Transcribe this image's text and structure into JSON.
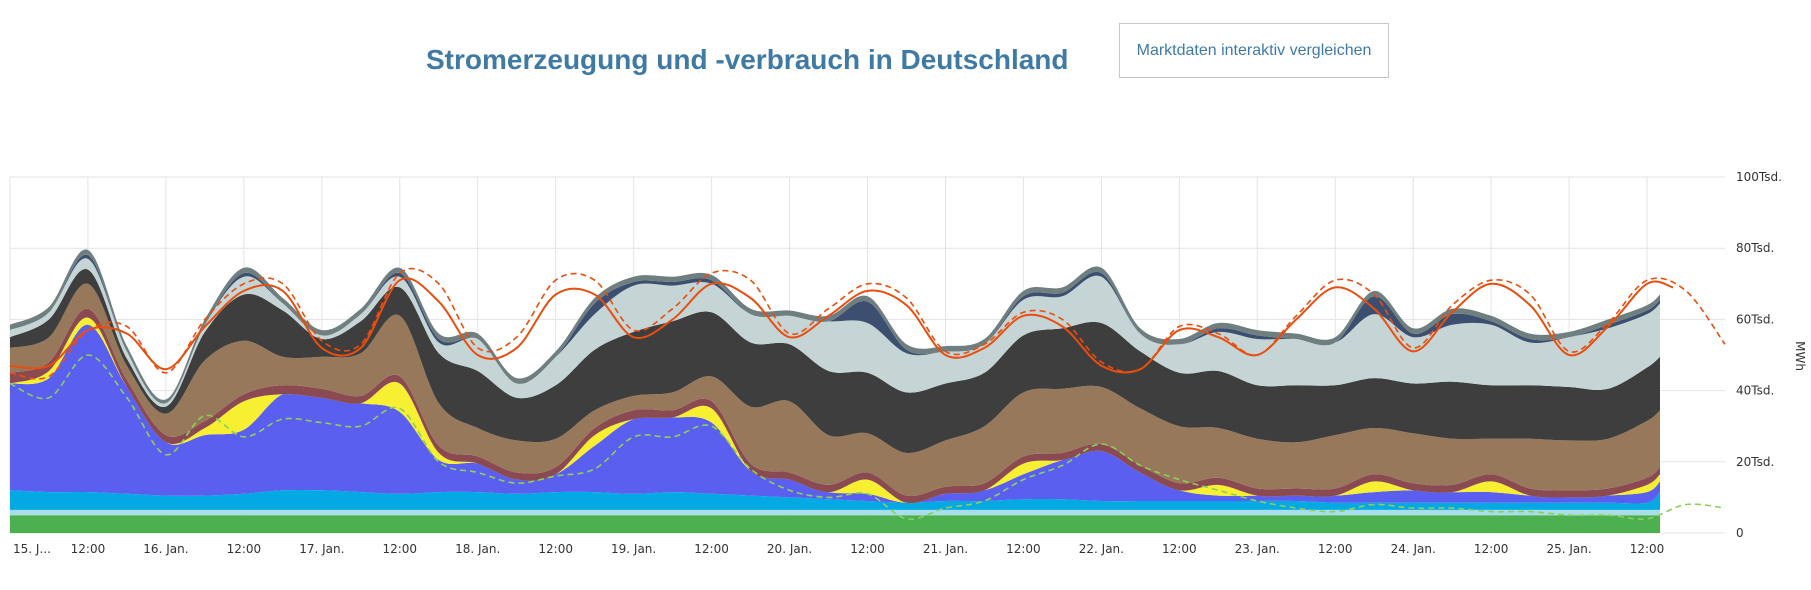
{
  "header": {
    "title": "Stromerzeugung und -verbrauch in Deutschland",
    "compare_button": "Marktdaten interaktiv vergleichen"
  },
  "chart_data": {
    "type": "area",
    "stacked": true,
    "x_unit": "hours since 15. Jan. 00:00",
    "x_range": [
      0,
      264
    ],
    "x_ticks": [
      {
        "x": 0,
        "label": "15. J..."
      },
      {
        "x": 12,
        "label": "12:00"
      },
      {
        "x": 24,
        "label": "16. Jan."
      },
      {
        "x": 36,
        "label": "12:00"
      },
      {
        "x": 48,
        "label": "17. Jan."
      },
      {
        "x": 60,
        "label": "12:00"
      },
      {
        "x": 72,
        "label": "18. Jan."
      },
      {
        "x": 84,
        "label": "12:00"
      },
      {
        "x": 96,
        "label": "19. Jan."
      },
      {
        "x": 108,
        "label": "12:00"
      },
      {
        "x": 120,
        "label": "20. Jan."
      },
      {
        "x": 132,
        "label": "12:00"
      },
      {
        "x": 144,
        "label": "21. Jan."
      },
      {
        "x": 156,
        "label": "12:00"
      },
      {
        "x": 168,
        "label": "22. Jan."
      },
      {
        "x": 180,
        "label": "12:00"
      },
      {
        "x": 192,
        "label": "23. Jan."
      },
      {
        "x": 204,
        "label": "12:00"
      },
      {
        "x": 216,
        "label": "24. Jan."
      },
      {
        "x": 228,
        "label": "12:00"
      },
      {
        "x": 240,
        "label": "25. Jan."
      },
      {
        "x": 252,
        "label": "12:00"
      }
    ],
    "y_axis": {
      "unit": "MWh",
      "range": [
        0,
        100000
      ],
      "ticks": [
        {
          "v": 0,
          "label": "0"
        },
        {
          "v": 20000,
          "label": "20Tsd."
        },
        {
          "v": 40000,
          "label": "40Tsd."
        },
        {
          "v": 60000,
          "label": "60Tsd."
        },
        {
          "v": 80000,
          "label": "80Tsd."
        },
        {
          "v": 100000,
          "label": "100Tsd."
        }
      ]
    },
    "grid": true,
    "legend": "none",
    "x": [
      0,
      6,
      12,
      18,
      24,
      30,
      36,
      42,
      48,
      54,
      60,
      66,
      72,
      78,
      84,
      90,
      96,
      102,
      108,
      114,
      120,
      126,
      132,
      138,
      144,
      150,
      156,
      162,
      168,
      174,
      180,
      186,
      192,
      198,
      204,
      210,
      216,
      222,
      228,
      234,
      240,
      246,
      252,
      254
    ],
    "series": [
      {
        "color": "#4caf50",
        "values": [
          5000,
          5000,
          5000,
          5000,
          5000,
          5000,
          5000,
          5000,
          5000,
          5000,
          5000,
          5000,
          5000,
          5000,
          5000,
          5000,
          5000,
          5000,
          5000,
          5000,
          5000,
          5000,
          5000,
          5000,
          5000,
          5000,
          5000,
          5000,
          5000,
          5000,
          5000,
          5000,
          5000,
          5000,
          5000,
          5000,
          5000,
          5000,
          5000,
          5000,
          5000,
          5000,
          5000,
          5000
        ]
      },
      {
        "color": "#a9dde8",
        "values": [
          1500,
          1500,
          1500,
          1500,
          1500,
          1500,
          1500,
          1500,
          1500,
          1500,
          1500,
          1500,
          1500,
          1500,
          1500,
          1500,
          1500,
          1500,
          1500,
          1500,
          1500,
          1500,
          1500,
          1500,
          1500,
          1500,
          1500,
          1500,
          1500,
          1500,
          1500,
          1500,
          1500,
          1500,
          1500,
          1500,
          1500,
          1500,
          1500,
          1500,
          1500,
          1500,
          1500,
          1500
        ]
      },
      {
        "color": "#03a9e3",
        "values": [
          5500,
          5000,
          5000,
          4500,
          4000,
          4000,
          4500,
          5500,
          5500,
          5000,
          4500,
          5000,
          5000,
          4500,
          5000,
          5000,
          4500,
          5000,
          4500,
          4000,
          3500,
          3000,
          2500,
          2000,
          2500,
          2500,
          3000,
          3000,
          2500,
          2500,
          2500,
          2500,
          2500,
          2500,
          2000,
          2000,
          2000,
          2000,
          2000,
          2000,
          2000,
          2000,
          2000,
          5000
        ]
      },
      {
        "color": "#5b5ff0",
        "values": [
          30000,
          32000,
          47000,
          30000,
          15000,
          17000,
          18000,
          27000,
          26000,
          25000,
          23000,
          9000,
          8000,
          4000,
          5000,
          13000,
          21000,
          21000,
          20000,
          7000,
          5000,
          2000,
          2000,
          0,
          2000,
          3000,
          7000,
          11000,
          14000,
          8000,
          3000,
          1500,
          1500,
          1500,
          2000,
          3000,
          3500,
          3000,
          3000,
          2000,
          1500,
          2000,
          3000,
          3000
        ]
      },
      {
        "color": "#f7ef32",
        "values": [
          0,
          2000,
          2000,
          0,
          0,
          2000,
          8000,
          0,
          0,
          0,
          8000,
          2000,
          0,
          0,
          0,
          3000,
          0,
          0,
          4000,
          0,
          0,
          0,
          4000,
          0,
          0,
          0,
          3000,
          0,
          0,
          0,
          0,
          3000,
          0,
          0,
          0,
          3000,
          0,
          0,
          3000,
          0,
          0,
          0,
          2000,
          2000
        ]
      },
      {
        "color": "#8b4a51",
        "values": [
          3000,
          2500,
          2500,
          2000,
          2000,
          2000,
          2000,
          2500,
          2500,
          2000,
          2000,
          2000,
          2000,
          2000,
          2000,
          2000,
          2500,
          2000,
          2000,
          2000,
          2000,
          2000,
          2000,
          2000,
          2000,
          2000,
          2000,
          2000,
          2000,
          2000,
          2000,
          2000,
          2000,
          2000,
          2000,
          2000,
          2000,
          2000,
          2000,
          2000,
          2000,
          2000,
          2000,
          2000
        ]
      },
      {
        "color": "#97785b",
        "values": [
          7000,
          7000,
          7000,
          4000,
          6000,
          17000,
          15000,
          8000,
          9000,
          12000,
          17000,
          12000,
          8000,
          9000,
          8000,
          5000,
          4000,
          5000,
          7000,
          16000,
          20000,
          14000,
          11000,
          12000,
          13000,
          16000,
          18000,
          18000,
          16000,
          16000,
          16000,
          14000,
          14000,
          13000,
          15000,
          13000,
          14000,
          13000,
          10000,
          14000,
          14000,
          14000,
          16000,
          16000
        ]
      },
      {
        "color": "#3e3e3e",
        "values": [
          3000,
          5000,
          4000,
          2000,
          2000,
          8000,
          13000,
          13000,
          5000,
          9000,
          8000,
          14000,
          16000,
          12000,
          15000,
          17000,
          18000,
          20000,
          18000,
          18000,
          16000,
          18000,
          17000,
          17000,
          16000,
          15000,
          16000,
          17000,
          18000,
          16000,
          15000,
          16000,
          15000,
          16000,
          14000,
          14000,
          14000,
          16000,
          15000,
          15000,
          15000,
          14000,
          15000,
          15000
        ]
      },
      {
        "color": "#c5d5d5",
        "values": [
          2000,
          2000,
          3000,
          2000,
          1000,
          2000,
          5000,
          2000,
          1000,
          2000,
          3000,
          3000,
          9000,
          4000,
          8000,
          10000,
          13000,
          10000,
          8000,
          8000,
          8000,
          14000,
          14000,
          11000,
          9000,
          8000,
          10000,
          9000,
          13000,
          5000,
          8000,
          11000,
          13000,
          13000,
          12000,
          18000,
          13000,
          16000,
          17000,
          12000,
          14000,
          17000,
          15000,
          15000
        ]
      },
      {
        "color": "#3d4f70",
        "values": [
          0,
          0,
          1000,
          0,
          0,
          0,
          1000,
          0,
          0,
          0,
          1000,
          1000,
          0,
          0,
          0,
          3000,
          1000,
          1000,
          1000,
          0,
          0,
          0,
          6000,
          1000,
          0,
          0,
          1000,
          1000,
          1000,
          0,
          0,
          1000,
          1000,
          0,
          0,
          5000,
          1000,
          3000,
          1000,
          1000,
          0,
          1000,
          1000,
          1000
        ]
      },
      {
        "color": "#6f7f7f",
        "values": [
          1500,
          1500,
          1500,
          1500,
          1000,
          1500,
          1500,
          1500,
          1500,
          1500,
          1500,
          1500,
          1500,
          1500,
          1500,
          1500,
          1500,
          1500,
          1500,
          1500,
          1500,
          1500,
          1500,
          1500,
          1500,
          1500,
          1500,
          1500,
          1500,
          1500,
          1500,
          1500,
          1500,
          1500,
          1500,
          1500,
          1500,
          1500,
          1500,
          1500,
          1500,
          1500,
          1500,
          1500
        ]
      }
    ],
    "lines": [
      {
        "color": "#e84e0f",
        "style": "solid",
        "x": [
          0,
          6,
          12,
          18,
          24,
          30,
          36,
          42,
          48,
          54,
          60,
          66,
          72,
          78,
          84,
          90,
          96,
          102,
          108,
          114,
          120,
          126,
          132,
          138,
          144,
          150,
          156,
          162,
          168,
          174,
          180,
          186,
          192,
          198,
          204,
          210,
          216,
          222,
          228,
          234,
          240,
          246,
          252,
          256
        ],
        "values": [
          47000,
          47000,
          57000,
          56000,
          46000,
          58000,
          68000,
          68000,
          52000,
          52000,
          71000,
          65000,
          50000,
          52000,
          67000,
          67000,
          55000,
          60000,
          70000,
          66000,
          55000,
          61000,
          68000,
          64000,
          50000,
          52000,
          61000,
          58000,
          47000,
          46000,
          57000,
          55000,
          50000,
          60000,
          69000,
          63000,
          51000,
          62000,
          70000,
          64000,
          50000,
          58000,
          70000,
          69000
        ]
      },
      {
        "color": "#e84e0f",
        "style": "dashed",
        "x": [
          0,
          6,
          12,
          18,
          24,
          30,
          36,
          42,
          48,
          54,
          60,
          66,
          72,
          78,
          84,
          90,
          96,
          102,
          108,
          114,
          120,
          126,
          132,
          138,
          144,
          150,
          156,
          162,
          168,
          174,
          180,
          186,
          192,
          198,
          204,
          210,
          216,
          222,
          228,
          234,
          240,
          246,
          252,
          258,
          264
        ],
        "values": [
          45000,
          44000,
          57000,
          58000,
          45000,
          60000,
          70000,
          70000,
          54000,
          53000,
          73000,
          70000,
          52000,
          55000,
          71000,
          71000,
          57000,
          63000,
          73000,
          71000,
          56000,
          63000,
          70000,
          66000,
          51000,
          53000,
          62000,
          60000,
          48000,
          46000,
          58000,
          56000,
          50000,
          61000,
          71000,
          67000,
          52000,
          64000,
          71000,
          67000,
          51000,
          59000,
          71000,
          68000,
          53000
        ]
      },
      {
        "color": "#8ccf5a",
        "style": "dashed",
        "x": [
          0,
          6,
          12,
          18,
          24,
          30,
          36,
          42,
          48,
          54,
          60,
          66,
          72,
          78,
          84,
          90,
          96,
          102,
          108,
          114,
          120,
          126,
          132,
          138,
          144,
          150,
          156,
          162,
          168,
          174,
          180,
          186,
          192,
          198,
          204,
          210,
          216,
          222,
          228,
          234,
          240,
          246,
          252,
          258,
          264
        ],
        "values": [
          42000,
          38000,
          50000,
          38000,
          22000,
          33000,
          27000,
          32000,
          31000,
          30000,
          35000,
          20000,
          17000,
          14000,
          16000,
          18000,
          27000,
          27000,
          30000,
          18000,
          12000,
          10000,
          11000,
          4000,
          7000,
          9000,
          15000,
          19000,
          25000,
          19000,
          15000,
          12000,
          9000,
          7000,
          6000,
          8000,
          7000,
          7000,
          6000,
          6000,
          5000,
          5000,
          4000,
          8000,
          7000
        ]
      }
    ]
  }
}
